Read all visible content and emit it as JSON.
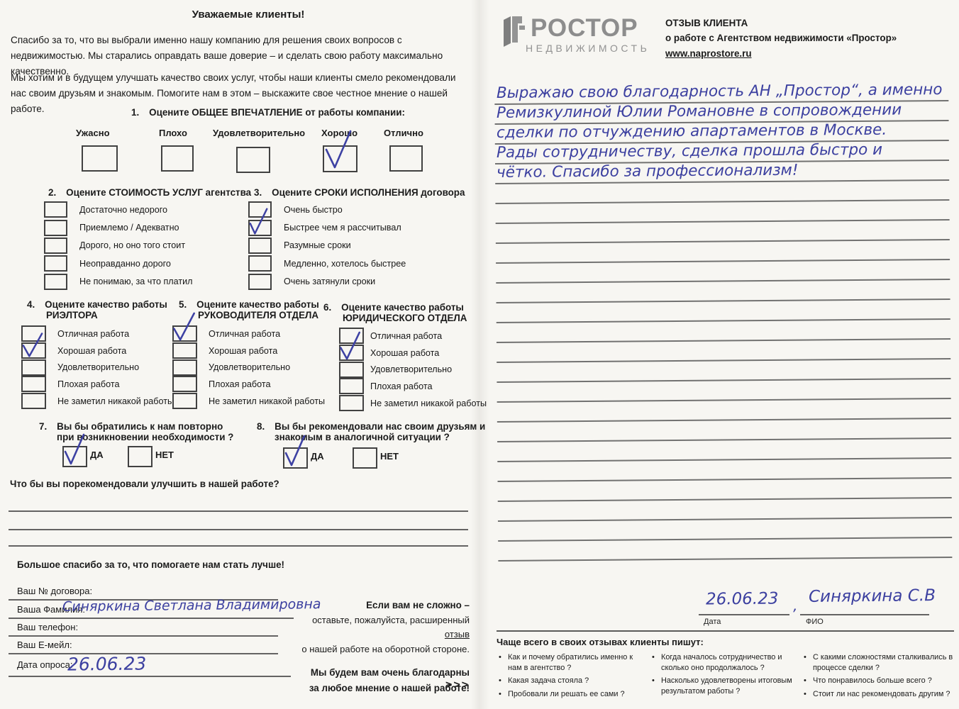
{
  "left_page": {
    "title": "Уважаемые клиенты!",
    "intro1": "Спасибо за то, что вы выбрали именно нашу компанию для решения своих вопросов с недвижимостью. Мы старались оправдать ваше доверие – и сделать свою работу максимально качественно.",
    "intro2": "Мы хотим и в будущем улучшать качество своих услуг, чтобы наши клиенты смело рекомендовали нас своим друзьям и знакомым. Помогите нам в этом – выскажите свое честное мнение о нашей работе.",
    "q1": {
      "number": "1.",
      "label": "Оцените ОБЩЕЕ ВПЕЧАТЛЕНИЕ от работы компании:",
      "options": [
        {
          "label": "Ужасно",
          "checked": false
        },
        {
          "label": "Плохо",
          "checked": false
        },
        {
          "label": "Удовлетворительно",
          "checked": false
        },
        {
          "label": "Хорошо",
          "checked": true
        },
        {
          "label": "Отлично",
          "checked": false
        }
      ]
    },
    "q2": {
      "number": "2.",
      "label": "Оцените СТОИМОСТЬ УСЛУГ агентства",
      "options": [
        {
          "label": "Достаточно недорого",
          "checked": false
        },
        {
          "label": "Приемлемо / Адекватно",
          "checked": false
        },
        {
          "label": "Дорого, но оно того стоит",
          "checked": false
        },
        {
          "label": "Неоправданно дорого",
          "checked": false
        },
        {
          "label": "Не понимаю, за что платил",
          "checked": false
        }
      ]
    },
    "q3": {
      "number": "3.",
      "label": "Оцените СРОКИ ИСПОЛНЕНИЯ договора",
      "options": [
        {
          "label": "Очень быстро",
          "checked": false
        },
        {
          "label": "Быстрее чем я рассчитывал",
          "checked": true
        },
        {
          "label": "Разумные сроки",
          "checked": false
        },
        {
          "label": "Медленно, хотелось быстрее",
          "checked": false
        },
        {
          "label": "Очень затянули сроки",
          "checked": false
        }
      ]
    },
    "q4": {
      "number": "4.",
      "label_line1": "Оцените качество работы",
      "label_line2": "РИЭЛТОРА",
      "options": [
        {
          "label": "Отличная работа",
          "checked": false
        },
        {
          "label": "Хорошая работа",
          "checked": true
        },
        {
          "label": "Удовлетворительно",
          "checked": false
        },
        {
          "label": "Плохая работа",
          "checked": false
        },
        {
          "label": "Не заметил никакой работы",
          "checked": false
        }
      ]
    },
    "q5": {
      "number": "5.",
      "label_line1": "Оцените качество работы",
      "label_line2": "РУКОВОДИТЕЛЯ ОТДЕЛА",
      "options": [
        {
          "label": "Отличная работа",
          "checked": true
        },
        {
          "label": "Хорошая работа",
          "checked": false
        },
        {
          "label": "Удовлетворительно",
          "checked": false
        },
        {
          "label": "Плохая работа",
          "checked": false
        },
        {
          "label": "Не заметил никакой работы",
          "checked": false
        }
      ]
    },
    "q6": {
      "number": "6.",
      "label_line1": "Оцените качество работы",
      "label_line2": "ЮРИДИЧЕСКОГО ОТДЕЛА",
      "options": [
        {
          "label": "Отличная работа",
          "checked": false
        },
        {
          "label": "Хорошая работа",
          "checked": true
        },
        {
          "label": "Удовлетворительно",
          "checked": false
        },
        {
          "label": "Плохая работа",
          "checked": false
        },
        {
          "label": "Не заметил никакой работы",
          "checked": false
        }
      ]
    },
    "q7": {
      "number": "7.",
      "label_line1": "Вы бы обратились к нам повторно",
      "label_line2": "при возникновении необходимости ?",
      "yes_label": "ДА",
      "no_label": "НЕТ",
      "yes_checked": true,
      "no_checked": false
    },
    "q8": {
      "number": "8.",
      "label_line1": "Вы бы рекомендовали нас своим друзьям и",
      "label_line2": "знакомым в аналогичной ситуации ?",
      "yes_label": "ДА",
      "no_label": "НЕТ",
      "yes_checked": true,
      "no_checked": false
    },
    "improve_question": "Что бы вы порекомендовали улучшить в нашей работе?",
    "thanks": "Большое спасибо за то, что помогаете нам стать лучше!",
    "fields": [
      {
        "label": "Ваш № договора:",
        "value": ""
      },
      {
        "label": "Ваша Фамилия:",
        "value": "Синяркина Светлана Владимировна"
      },
      {
        "label": "Ваш телефон:",
        "value": ""
      },
      {
        "label": "Ваш Е-мейл:",
        "value": ""
      },
      {
        "label": "Дата опроса:",
        "value": "26.06.23"
      }
    ],
    "aside": {
      "line1": "Если вам не сложно –",
      "line2_pre": "оставьте, пожалуйста, расширенный ",
      "line2_link": "отзыв",
      "line3": "о нашей работе на оборотной стороне.",
      "line4": "Мы будем вам очень благодарны",
      "line5": "за любое мнение о нашей работе!",
      "arrows": ">>>"
    }
  },
  "right_page": {
    "logo": {
      "name": "ПРОСТОР",
      "wordmark_tail": "РОСТОР",
      "subtitle": "НЕДВИЖИМОСТЬ"
    },
    "header": {
      "title": "ОТЗЫВ КЛИЕНТА",
      "subtitle": "о работе с Агентством недвижимости «Простор»",
      "url": "www.naprostore.ru"
    },
    "review_lines": [
      "Выражаю свою благодарность АН „Простор“, а именно",
      "Ремизкулиной Юлии Романовне в сопровождении",
      "сделки по отчуждению апартаментов в Москве.",
      "Рады сотрудничеству, сделка прошла быстро и",
      "чётко. Спасибо за профессионализм!"
    ],
    "signature": {
      "date": "26.06.23",
      "date_label": "Дата",
      "separator": ",",
      "name": "Синяркина С.В",
      "name_label": "ФИО"
    },
    "footer": {
      "title": "Чаще всего в своих отзывах клиенты пишут:",
      "columns": [
        [
          "Как и почему обратились именно к нам в агентство ?",
          "Какая задача стояла ?",
          "Пробовали ли решать ее сами ?"
        ],
        [
          "Когда началось сотрудничество и сколько оно продолжалось ?",
          "Насколько удовлетворены итоговым результатом работы ?"
        ],
        [
          "С какими сложностями сталкивались в процессе сделки ?",
          "Что понравилось больше всего ?",
          "Стоит ли нас рекомендовать другим ?"
        ]
      ]
    }
  }
}
